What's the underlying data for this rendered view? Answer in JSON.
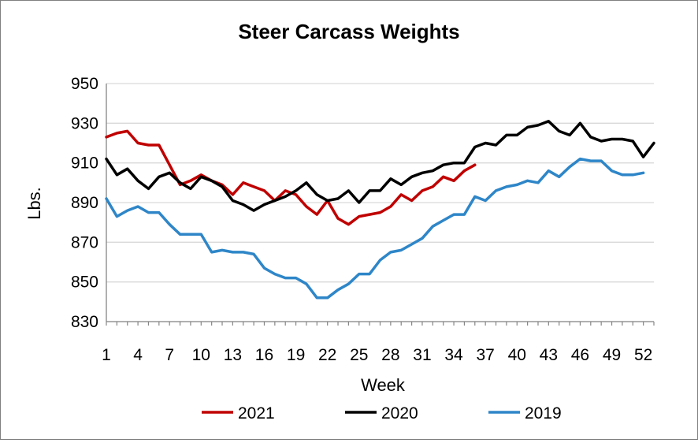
{
  "chart_data": {
    "type": "line",
    "title": "Steer Carcass Weights",
    "xlabel": "Week",
    "ylabel": "Lbs.",
    "ylim": [
      830,
      950
    ],
    "yticks": [
      830,
      850,
      870,
      890,
      910,
      930,
      950
    ],
    "xlim": [
      1,
      53
    ],
    "xticks": [
      1,
      4,
      7,
      10,
      13,
      16,
      19,
      22,
      25,
      28,
      31,
      34,
      37,
      40,
      43,
      46,
      49,
      52
    ],
    "grid": "horizontal",
    "legend": "bottom",
    "series": [
      {
        "name": "2021",
        "color": "#C00000",
        "values": [
          923,
          925,
          926,
          920,
          919,
          919,
          909,
          899,
          901,
          904,
          901,
          899,
          894,
          900,
          898,
          896,
          891,
          896,
          894,
          888,
          884,
          891,
          882,
          879,
          883,
          884,
          885,
          888,
          894,
          891,
          896,
          898,
          903,
          901,
          906,
          909
        ]
      },
      {
        "name": "2020",
        "color": "#000000",
        "values": [
          912,
          904,
          907,
          901,
          897,
          903,
          905,
          900,
          897,
          903,
          901,
          898,
          891,
          889,
          886,
          889,
          891,
          893,
          896,
          900,
          894,
          891,
          892,
          896,
          890,
          896,
          896,
          902,
          899,
          903,
          905,
          906,
          909,
          910,
          910,
          918,
          920,
          919,
          924,
          924,
          928,
          929,
          931,
          926,
          924,
          930,
          923,
          921,
          922,
          922,
          921,
          913,
          920
        ]
      },
      {
        "name": "2019",
        "color": "#2E86C8",
        "values": [
          892,
          883,
          886,
          888,
          885,
          885,
          879,
          874,
          874,
          874,
          865,
          866,
          865,
          865,
          864,
          857,
          854,
          852,
          852,
          849,
          842,
          842,
          846,
          849,
          854,
          854,
          861,
          865,
          866,
          869,
          872,
          878,
          881,
          884,
          884,
          893,
          891,
          896,
          898,
          899,
          901,
          900,
          906,
          903,
          908,
          912,
          911,
          911,
          906,
          904,
          904,
          905
        ]
      }
    ]
  }
}
